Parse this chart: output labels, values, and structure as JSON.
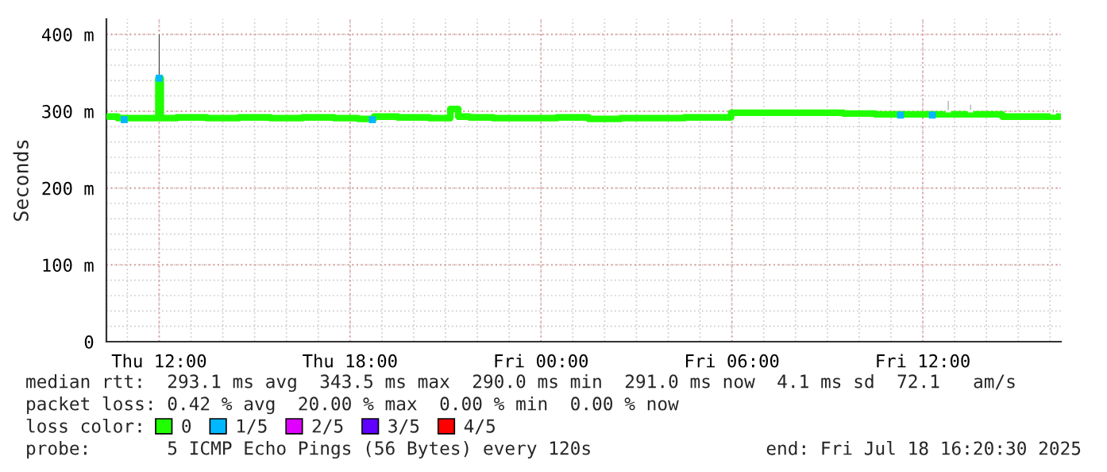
{
  "chart_data": {
    "type": "line",
    "ylabel": "Seconds",
    "xlim": [
      "2025-07-17T10:20:30",
      "2025-07-18T16:20:30"
    ],
    "xticks": [
      {
        "value": "2025-07-17T12:00",
        "label": "Thu 12:00"
      },
      {
        "value": "2025-07-17T18:00",
        "label": "Thu 18:00"
      },
      {
        "value": "2025-07-18T00:00",
        "label": "Fri 00:00"
      },
      {
        "value": "2025-07-18T06:00",
        "label": "Fri 06:00"
      },
      {
        "value": "2025-07-18T12:00",
        "label": "Fri 12:00"
      }
    ],
    "ylim": [
      0,
      420
    ],
    "yticks": [
      0,
      {
        "value": 100,
        "label": "100 m"
      },
      {
        "value": 200,
        "label": "200 m"
      },
      {
        "value": 300,
        "label": "300 m"
      },
      {
        "value": 400,
        "label": "400 m"
      }
    ],
    "grid": true,
    "legend": "bottom",
    "legend_title": "loss color:",
    "series": [
      {
        "name": "0",
        "color": "#20ff00",
        "x": [
          "2025-07-17T10:24",
          "2025-07-17T11:00",
          "2025-07-17T11:57",
          "2025-07-17T12:00",
          "2025-07-17T12:06",
          "2025-07-17T13:00",
          "2025-07-17T14:00",
          "2025-07-17T15:00",
          "2025-07-17T16:00",
          "2025-07-17T17:00",
          "2025-07-17T18:00",
          "2025-07-17T18:30",
          "2025-07-17T19:00",
          "2025-07-17T20:00",
          "2025-07-17T21:00",
          "2025-07-17T21:18",
          "2025-07-17T21:30",
          "2025-07-17T22:00",
          "2025-07-17T23:00",
          "2025-07-18T00:00",
          "2025-07-18T01:00",
          "2025-07-18T02:00",
          "2025-07-18T03:00",
          "2025-07-18T04:00",
          "2025-07-18T05:00",
          "2025-07-18T05:54",
          "2025-07-18T06:03",
          "2025-07-18T07:00",
          "2025-07-18T08:00",
          "2025-07-18T09:00",
          "2025-07-18T10:00",
          "2025-07-18T11:00",
          "2025-07-18T12:00",
          "2025-07-18T13:00",
          "2025-07-18T14:00",
          "2025-07-18T15:00",
          "2025-07-18T16:00",
          "2025-07-18T16:18"
        ],
        "values": [
          293,
          291,
          291,
          343,
          291,
          292,
          291,
          292,
          291,
          292,
          291,
          290,
          293,
          292,
          291,
          303,
          293,
          292,
          291,
          291,
          292,
          290,
          291,
          291,
          292,
          292,
          298,
          298,
          298,
          298,
          297,
          296,
          296,
          296,
          296,
          293,
          293,
          293
        ]
      },
      {
        "name": "1/5",
        "color": "#00b8ff",
        "type": "scatter",
        "x": [
          "2025-07-17T12:00",
          "2025-07-17T10:54",
          "2025-07-17T18:42",
          "2025-07-18T11:18",
          "2025-07-18T12:18"
        ],
        "values": [
          343,
          289,
          289,
          295,
          295
        ]
      },
      {
        "name": "2/5",
        "color": "#e000ff",
        "type": "scatter"
      },
      {
        "name": "3/5",
        "color": "#6000ff",
        "type": "scatter"
      },
      {
        "name": "4/5",
        "color": "#ff0000",
        "type": "scatter"
      },
      {
        "type": "bar",
        "x": [
          "2025-07-17T12:00",
          "2025-07-18T12:48",
          "2025-07-18T13:30",
          "2025-07-18T16:06"
        ],
        "base": [
          346,
          300,
          300,
          297
        ],
        "values": [
          56,
          15,
          10,
          7
        ],
        "colors": [
          "#333333",
          "#999999",
          "#999999",
          "#999999"
        ]
      }
    ],
    "annotations": [
      "median rtt:  293.1 ms avg  343.5 ms max  290.0 ms min  291.0 ms now  4.1 ms sd  72.1   am/s",
      "packet loss: 0.42 % avg  20.00 % max  0.00 % min  0.00 % now",
      "probe:       5 ICMP Echo Pings (56 Bytes) every 120s",
      "end: Fri Jul 18 16:20:30 2025"
    ]
  }
}
